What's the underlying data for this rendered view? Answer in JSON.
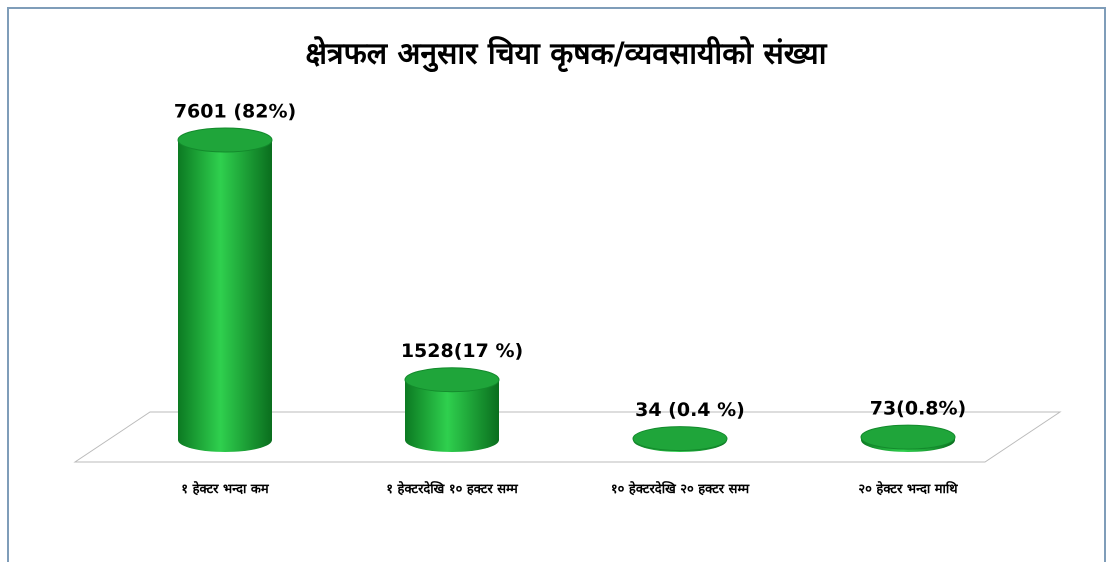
{
  "chart_data": {
    "type": "bar3d",
    "title": "क्षेत्रफल अनुसार चिया कृषक/व्यवसायीको संख्या",
    "categories": [
      "१ हेक्टर भन्दा कम",
      "१ हेक्टरदेखि १० हक्टर सम्म",
      "१० हेक्टरदेखि २० हक्टर सम्म",
      "२० हेक्टर भन्दा माथि"
    ],
    "values": [
      7601,
      1528,
      34,
      73
    ],
    "value_labels": [
      "7601 (82%)",
      "1528(17 %)",
      "34 (0.4 %)",
      "73(0.8%)"
    ],
    "color": "#1fa53a"
  }
}
